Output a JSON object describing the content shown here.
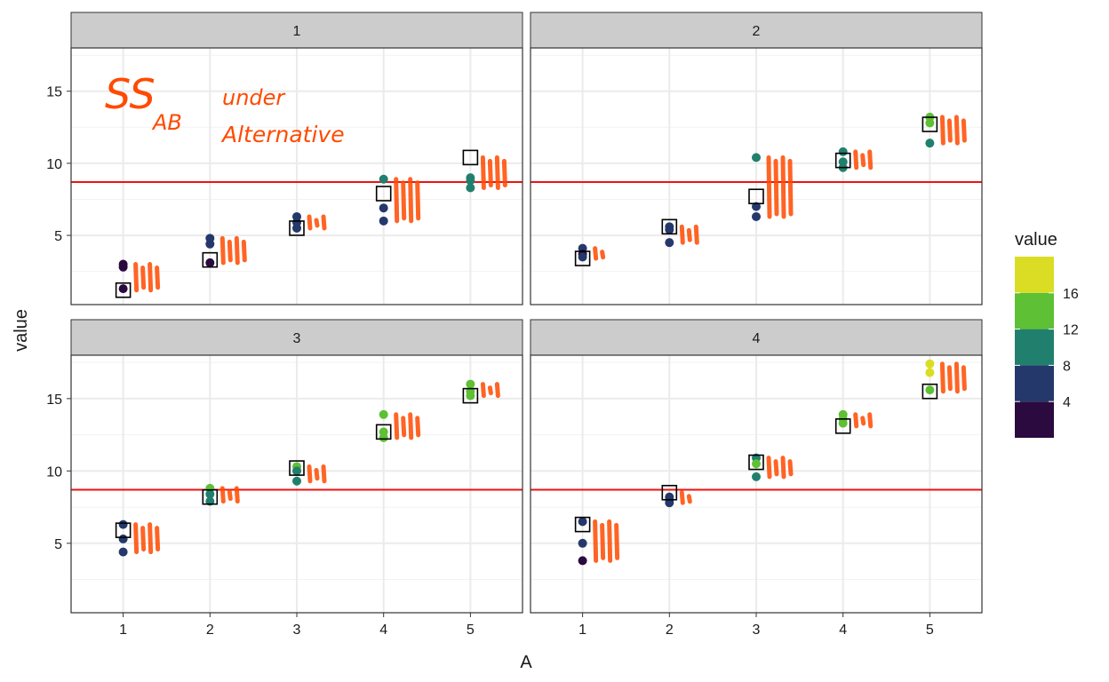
{
  "chart_data": {
    "type": "scatter",
    "facet_variable": "B",
    "facets": [
      {
        "label": "1",
        "points": [
          {
            "x": 1,
            "y": 3.0,
            "c": 2.5
          },
          {
            "x": 1,
            "y": 2.8,
            "c": 2.5
          },
          {
            "x": 1,
            "y": 1.3,
            "c": 2.5
          },
          {
            "x": 2,
            "y": 4.8,
            "c": 5.0
          },
          {
            "x": 2,
            "y": 4.4,
            "c": 5.0
          },
          {
            "x": 2,
            "y": 3.1,
            "c": 2.5
          },
          {
            "x": 3,
            "y": 6.3,
            "c": 5.0
          },
          {
            "x": 3,
            "y": 5.9,
            "c": 5.0
          },
          {
            "x": 3,
            "y": 5.5,
            "c": 5.0
          },
          {
            "x": 4,
            "y": 8.9,
            "c": 9.0
          },
          {
            "x": 4,
            "y": 6.9,
            "c": 5.0
          },
          {
            "x": 4,
            "y": 6.0,
            "c": 5.0
          },
          {
            "x": 5,
            "y": 9.0,
            "c": 9.0
          },
          {
            "x": 5,
            "y": 8.8,
            "c": 9.0
          },
          {
            "x": 5,
            "y": 8.3,
            "c": 9.0
          }
        ],
        "means": [
          1.2,
          3.3,
          5.5,
          7.9,
          10.4
        ]
      },
      {
        "label": "2",
        "points": [
          {
            "x": 1,
            "y": 4.1,
            "c": 5.0
          },
          {
            "x": 1,
            "y": 3.7,
            "c": 2.5
          },
          {
            "x": 1,
            "y": 3.5,
            "c": 5.0
          },
          {
            "x": 2,
            "y": 5.6,
            "c": 5.0
          },
          {
            "x": 2,
            "y": 5.4,
            "c": 5.0
          },
          {
            "x": 2,
            "y": 4.5,
            "c": 5.0
          },
          {
            "x": 3,
            "y": 10.4,
            "c": 9.0
          },
          {
            "x": 3,
            "y": 7.0,
            "c": 5.0
          },
          {
            "x": 3,
            "y": 6.3,
            "c": 5.0
          },
          {
            "x": 4,
            "y": 10.8,
            "c": 9.0
          },
          {
            "x": 4,
            "y": 10.1,
            "c": 9.0
          },
          {
            "x": 4,
            "y": 9.7,
            "c": 9.0
          },
          {
            "x": 5,
            "y": 13.2,
            "c": 14.0
          },
          {
            "x": 5,
            "y": 12.8,
            "c": 14.0
          },
          {
            "x": 5,
            "y": 11.4,
            "c": 9.0
          }
        ],
        "means": [
          3.4,
          5.6,
          7.7,
          10.2,
          12.7
        ]
      },
      {
        "label": "3",
        "points": [
          {
            "x": 1,
            "y": 6.3,
            "c": 5.0
          },
          {
            "x": 1,
            "y": 5.3,
            "c": 5.0
          },
          {
            "x": 1,
            "y": 4.4,
            "c": 5.0
          },
          {
            "x": 2,
            "y": 8.8,
            "c": 14.0
          },
          {
            "x": 2,
            "y": 8.4,
            "c": 9.0
          },
          {
            "x": 2,
            "y": 7.9,
            "c": 9.0
          },
          {
            "x": 3,
            "y": 10.3,
            "c": 14.0
          },
          {
            "x": 3,
            "y": 10.0,
            "c": 9.0
          },
          {
            "x": 3,
            "y": 9.3,
            "c": 9.0
          },
          {
            "x": 4,
            "y": 13.9,
            "c": 14.0
          },
          {
            "x": 4,
            "y": 12.7,
            "c": 14.0
          },
          {
            "x": 4,
            "y": 12.3,
            "c": 14.0
          },
          {
            "x": 5,
            "y": 16.0,
            "c": 14.0
          },
          {
            "x": 5,
            "y": 15.5,
            "c": 14.0
          },
          {
            "x": 5,
            "y": 15.2,
            "c": 14.0
          }
        ],
        "means": [
          5.9,
          8.2,
          10.2,
          12.7,
          15.2
        ]
      },
      {
        "label": "4",
        "points": [
          {
            "x": 1,
            "y": 6.5,
            "c": 5.0
          },
          {
            "x": 1,
            "y": 5.0,
            "c": 5.0
          },
          {
            "x": 1,
            "y": 3.8,
            "c": 2.5
          },
          {
            "x": 2,
            "y": 8.0,
            "c": 5.0
          },
          {
            "x": 2,
            "y": 7.8,
            "c": 5.0
          },
          {
            "x": 2,
            "y": 8.2,
            "c": 5.0
          },
          {
            "x": 3,
            "y": 10.9,
            "c": 9.0
          },
          {
            "x": 3,
            "y": 10.5,
            "c": 14.0
          },
          {
            "x": 3,
            "y": 9.6,
            "c": 9.0
          },
          {
            "x": 4,
            "y": 13.9,
            "c": 14.0
          },
          {
            "x": 4,
            "y": 13.6,
            "c": 14.0
          },
          {
            "x": 4,
            "y": 13.3,
            "c": 14.0
          },
          {
            "x": 5,
            "y": 17.4,
            "c": 17.5
          },
          {
            "x": 5,
            "y": 16.8,
            "c": 17.5
          },
          {
            "x": 5,
            "y": 15.6,
            "c": 14.0
          }
        ],
        "means": [
          6.3,
          8.5,
          10.6,
          13.1,
          15.5
        ]
      }
    ],
    "grand_mean": 8.7,
    "xlabel": "A",
    "ylabel": "value",
    "x_ticks": [
      1,
      2,
      3,
      4,
      5
    ],
    "xlim": [
      0.4,
      5.6
    ],
    "y_ticks": [
      5,
      10,
      15
    ],
    "ylim": [
      0.2,
      18.0
    ],
    "grid": true,
    "legend": {
      "title": "value",
      "position": "right",
      "labels": [
        "16",
        "12",
        "8",
        "4"
      ],
      "label_values": [
        16,
        12,
        8,
        4
      ],
      "range": [
        0,
        20
      ],
      "bins": [
        {
          "from": 0,
          "to": 4,
          "color": "#2b0a3f"
        },
        {
          "from": 4,
          "to": 8,
          "color": "#24386b"
        },
        {
          "from": 8,
          "to": 12,
          "color": "#21806d"
        },
        {
          "from": 12,
          "to": 16,
          "color": "#5ec034"
        },
        {
          "from": 16,
          "to": 20,
          "color": "#dadd23"
        }
      ]
    },
    "colors": {
      "hline": "#ee1111",
      "mean_box": "#000000",
      "annotation": "#ff4a00",
      "strip_fill": "#cccccc",
      "grid": "#ebebeb"
    }
  },
  "annotation": {
    "line1_main": "SS",
    "line1_sub": "AB",
    "line1_word": "under",
    "line2": "Alternative"
  }
}
